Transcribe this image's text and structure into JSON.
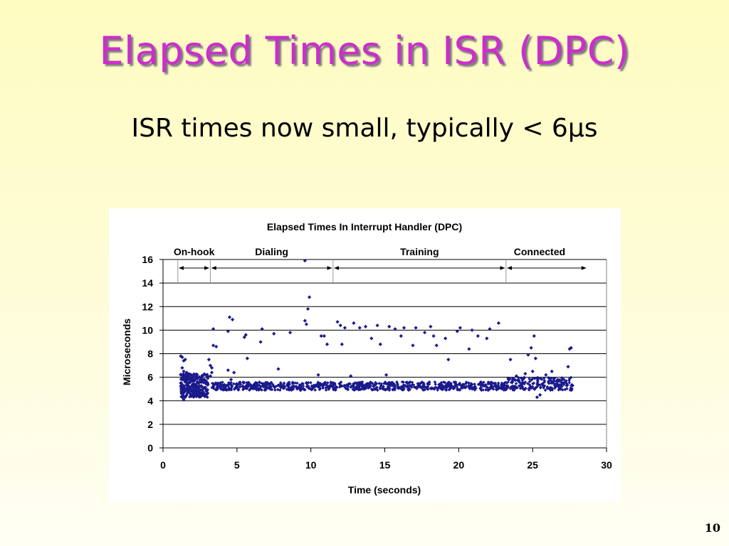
{
  "slide": {
    "title": "Elapsed Times in ISR (DPC)",
    "subtitle": "ISR times now small, typically < 6µs",
    "page_number": "10"
  },
  "colors": {
    "title": "#cc2ecc",
    "points": "#1a1a8c",
    "gridline": "#000000"
  },
  "chart_data": {
    "type": "scatter",
    "title": "Elapsed Times In Interrupt Handler (DPC)",
    "xlabel": "Time (seconds)",
    "ylabel": "Microseconds",
    "xlim": [
      0,
      30
    ],
    "ylim": [
      0,
      16
    ],
    "xticks": [
      0,
      5,
      10,
      15,
      20,
      25,
      30
    ],
    "yticks": [
      0,
      2,
      4,
      6,
      8,
      10,
      12,
      14,
      16
    ],
    "grid": "horizontal",
    "phases": [
      {
        "label": "On-hook",
        "start": 1.0,
        "end": 3.2
      },
      {
        "label": "Dialing",
        "start": 3.2,
        "end": 11.5
      },
      {
        "label": "Training",
        "start": 11.5,
        "end": 23.2
      },
      {
        "label": "Connected",
        "start": 23.2,
        "end": 28.7
      }
    ],
    "series": [
      {
        "points": [
          [
            1.2,
            7.8
          ],
          [
            1.3,
            7.7
          ],
          [
            1.4,
            7.4
          ],
          [
            1.5,
            7.5
          ],
          [
            1.3,
            6.8
          ],
          [
            1.4,
            6.5
          ],
          [
            1.2,
            6.2
          ],
          [
            1.5,
            6.1
          ],
          [
            1.6,
            6.4
          ],
          [
            1.3,
            5.9
          ],
          [
            1.4,
            5.8
          ],
          [
            1.5,
            5.6
          ],
          [
            1.2,
            5.5
          ],
          [
            1.6,
            5.3
          ],
          [
            1.7,
            6.0
          ],
          [
            1.4,
            5.1
          ],
          [
            1.3,
            4.6
          ],
          [
            1.5,
            4.9
          ],
          [
            1.3,
            4.3
          ],
          [
            1.4,
            4.1
          ],
          [
            1.6,
            4.5
          ],
          [
            1.8,
            5.6
          ],
          [
            1.9,
            5.2
          ],
          [
            2.0,
            4.8
          ],
          [
            2.1,
            5.7
          ],
          [
            2.2,
            4.6
          ],
          [
            2.3,
            6.0
          ],
          [
            2.4,
            5.5
          ],
          [
            2.5,
            4.7
          ],
          [
            2.6,
            5.9
          ],
          [
            2.7,
            4.5
          ],
          [
            2.8,
            5.1
          ],
          [
            2.9,
            4.4
          ],
          [
            3.0,
            4.6
          ],
          [
            1.9,
            4.5
          ],
          [
            2.1,
            4.4
          ],
          [
            2.3,
            4.5
          ],
          [
            2.5,
            4.4
          ],
          [
            2.7,
            4.6
          ],
          [
            1.8,
            4.8
          ],
          [
            2.0,
            5.8
          ],
          [
            2.6,
            5.2
          ],
          [
            3.1,
            7.5
          ],
          [
            3.2,
            7.0
          ],
          [
            3.3,
            6.8
          ],
          [
            3.4,
            8.7
          ],
          [
            3.4,
            10.1
          ],
          [
            3.6,
            8.6
          ],
          [
            3.2,
            6.1
          ],
          [
            3.3,
            6.4
          ],
          [
            3.5,
            5.4
          ],
          [
            3.7,
            5.3
          ],
          [
            3.9,
            5.1
          ],
          [
            4.1,
            5.2
          ],
          [
            4.3,
            5.3
          ],
          [
            4.4,
            6.6
          ],
          [
            4.5,
            11.1
          ],
          [
            4.7,
            10.9
          ],
          [
            4.4,
            9.9
          ],
          [
            4.8,
            6.4
          ],
          [
            4.6,
            5.8
          ],
          [
            4.9,
            5.1
          ],
          [
            5.0,
            5.3
          ],
          [
            5.2,
            5.2
          ],
          [
            5.4,
            5.2
          ],
          [
            5.5,
            9.4
          ],
          [
            5.6,
            9.6
          ],
          [
            5.7,
            7.6
          ],
          [
            5.9,
            5.3
          ],
          [
            6.1,
            5.2
          ],
          [
            6.3,
            5.1
          ],
          [
            6.5,
            5.3
          ],
          [
            6.7,
            10.1
          ],
          [
            6.6,
            9.0
          ],
          [
            6.8,
            5.2
          ],
          [
            7.0,
            5.3
          ],
          [
            7.3,
            5.2
          ],
          [
            7.5,
            9.7
          ],
          [
            7.6,
            5.2
          ],
          [
            7.8,
            6.7
          ],
          [
            8.0,
            5.2
          ],
          [
            8.2,
            5.1
          ],
          [
            8.4,
            5.3
          ],
          [
            8.6,
            9.8
          ],
          [
            8.8,
            5.0
          ],
          [
            9.0,
            5.2
          ],
          [
            9.2,
            5.1
          ],
          [
            9.3,
            4.9
          ],
          [
            9.5,
            5.0
          ],
          [
            9.6,
            10.8
          ],
          [
            9.7,
            10.5
          ],
          [
            9.8,
            11.8
          ],
          [
            9.6,
            15.9
          ],
          [
            9.9,
            12.8
          ],
          [
            10.1,
            5.2
          ],
          [
            10.3,
            5.3
          ],
          [
            10.5,
            6.2
          ],
          [
            10.7,
            9.5
          ],
          [
            10.9,
            9.5
          ],
          [
            11.1,
            8.8
          ],
          [
            11.3,
            5.2
          ],
          [
            11.5,
            5.3
          ],
          [
            11.6,
            5.4
          ],
          [
            11.8,
            10.7
          ],
          [
            12.0,
            10.4
          ],
          [
            12.1,
            8.8
          ],
          [
            12.3,
            10.2
          ],
          [
            12.5,
            5.2
          ],
          [
            12.7,
            6.1
          ],
          [
            12.9,
            10.6
          ],
          [
            13.1,
            5.2
          ],
          [
            13.3,
            10.2
          ],
          [
            13.5,
            5.3
          ],
          [
            13.7,
            10.3
          ],
          [
            13.9,
            5.2
          ],
          [
            14.1,
            9.3
          ],
          [
            14.3,
            5.0
          ],
          [
            14.5,
            10.4
          ],
          [
            14.7,
            8.8
          ],
          [
            14.9,
            5.2
          ],
          [
            15.1,
            6.2
          ],
          [
            15.3,
            10.3
          ],
          [
            15.5,
            5.3
          ],
          [
            15.7,
            10.1
          ],
          [
            15.9,
            5.2
          ],
          [
            16.1,
            9.5
          ],
          [
            16.3,
            10.2
          ],
          [
            16.5,
            5.2
          ],
          [
            16.7,
            5.3
          ],
          [
            16.9,
            8.7
          ],
          [
            17.1,
            10.2
          ],
          [
            17.3,
            5.2
          ],
          [
            17.5,
            5.1
          ],
          [
            17.7,
            9.8
          ],
          [
            17.9,
            5.2
          ],
          [
            18.1,
            10.3
          ],
          [
            18.3,
            9.5
          ],
          [
            18.5,
            8.7
          ],
          [
            18.7,
            5.2
          ],
          [
            18.9,
            5.3
          ],
          [
            19.1,
            9.3
          ],
          [
            19.3,
            7.5
          ],
          [
            19.5,
            5.2
          ],
          [
            19.7,
            5.2
          ],
          [
            19.9,
            9.9
          ],
          [
            20.1,
            10.2
          ],
          [
            20.3,
            5.3
          ],
          [
            20.5,
            5.2
          ],
          [
            20.7,
            8.4
          ],
          [
            20.9,
            10.0
          ],
          [
            21.1,
            5.2
          ],
          [
            21.3,
            9.5
          ],
          [
            21.5,
            5.1
          ],
          [
            21.7,
            5.3
          ],
          [
            21.9,
            9.3
          ],
          [
            22.1,
            10.1
          ],
          [
            22.3,
            5.2
          ],
          [
            22.5,
            5.2
          ],
          [
            22.7,
            10.6
          ],
          [
            22.9,
            5.1
          ],
          [
            23.1,
            5.3
          ],
          [
            23.3,
            5.2
          ],
          [
            23.5,
            7.5
          ],
          [
            23.7,
            5.0
          ],
          [
            23.9,
            6.1
          ],
          [
            24.1,
            5.6
          ],
          [
            24.3,
            5.2
          ],
          [
            24.5,
            6.3
          ],
          [
            24.7,
            7.9
          ],
          [
            24.9,
            8.5
          ],
          [
            25.1,
            9.5
          ],
          [
            25.2,
            7.6
          ],
          [
            25.0,
            6.5
          ],
          [
            25.3,
            4.3
          ],
          [
            25.5,
            4.5
          ],
          [
            25.7,
            5.3
          ],
          [
            25.9,
            6.2
          ],
          [
            26.1,
            5.5
          ],
          [
            26.3,
            6.5
          ],
          [
            26.5,
            5.3
          ],
          [
            26.7,
            5.8
          ],
          [
            26.9,
            5.2
          ],
          [
            27.1,
            5.4
          ],
          [
            27.3,
            5.3
          ],
          [
            27.5,
            8.4
          ],
          [
            27.6,
            8.5
          ],
          [
            27.7,
            5.3
          ],
          [
            27.4,
            6.9
          ]
        ]
      }
    ]
  }
}
